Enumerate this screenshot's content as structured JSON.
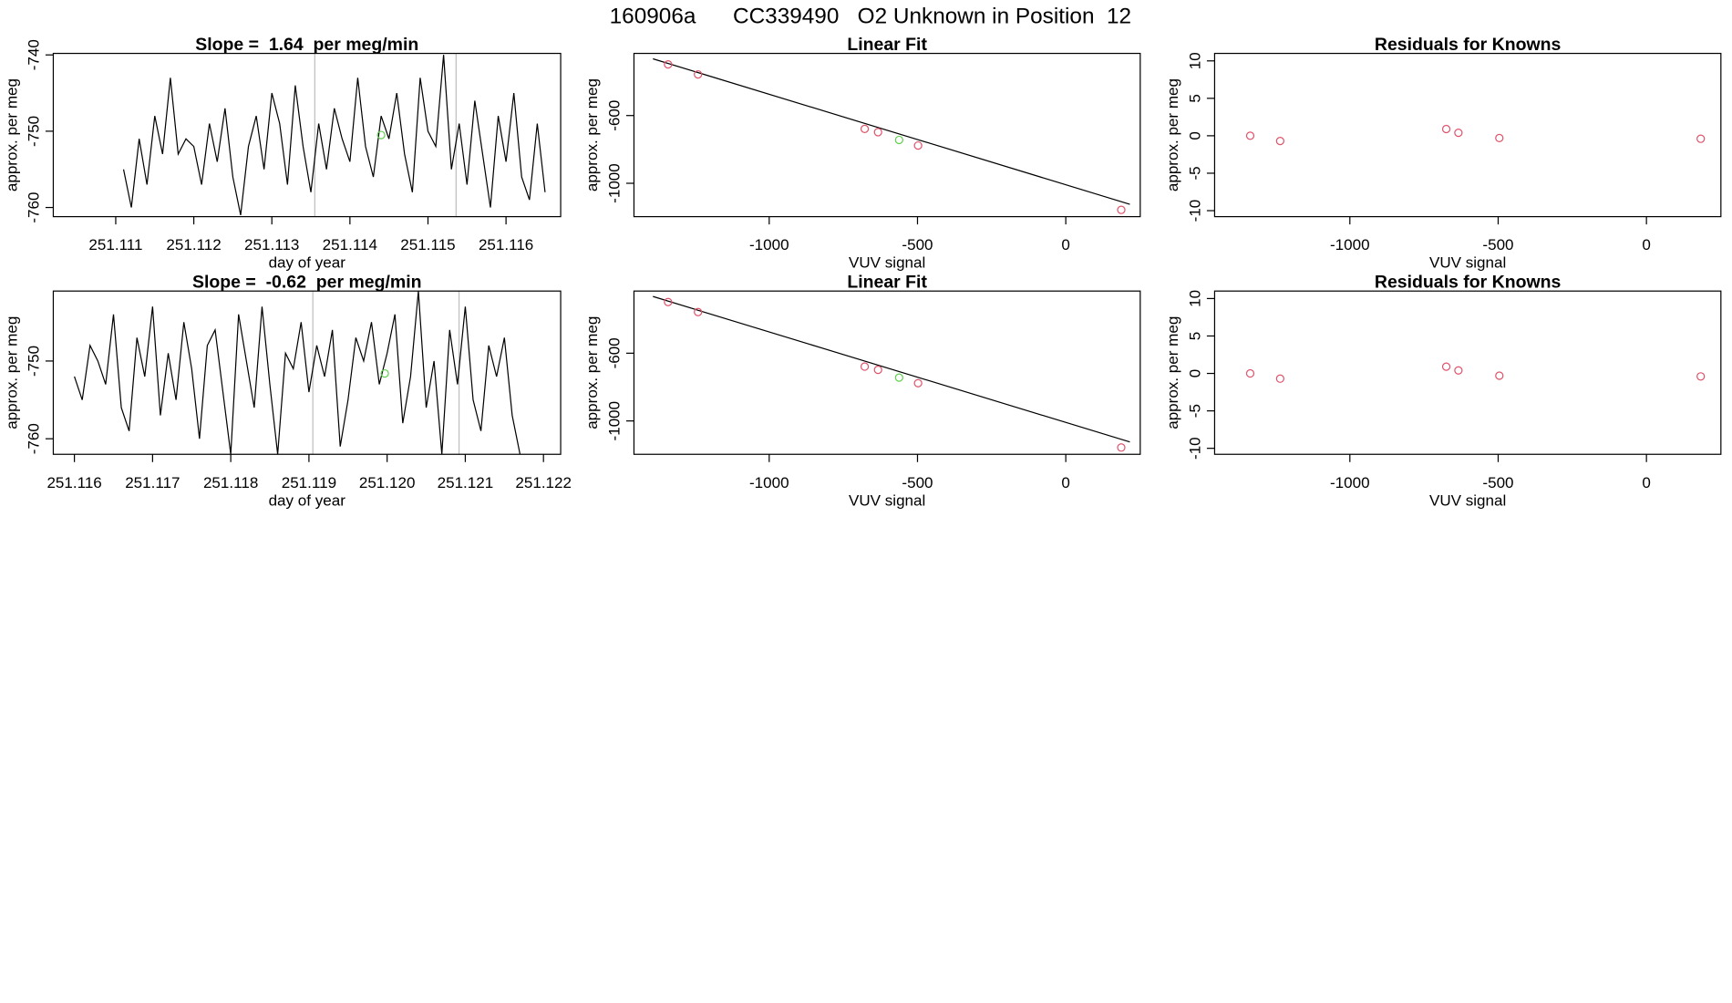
{
  "title": "160906a      CC339490   O2 Unknown in Position  12",
  "chart_data": [
    {
      "type": "line",
      "title": "Slope =  1.64  per meg/min",
      "xlabel": "day of year",
      "ylabel": "approx. per meg",
      "xlim": [
        251.1102,
        251.1167
      ],
      "ylim": [
        -761.2,
        -739.8
      ],
      "xticks": [
        251.111,
        251.112,
        251.113,
        251.114,
        251.115,
        251.116
      ],
      "yticks": [
        -740,
        -750,
        -760
      ],
      "color": "#000000",
      "vlines": [
        251.11355,
        251.11536
      ],
      "vline_color": "#bebebe",
      "x": [
        251.1111,
        251.1112,
        251.1113,
        251.1114,
        251.1115,
        251.1116,
        251.1117,
        251.1118,
        251.1119,
        251.112,
        251.1121,
        251.1122,
        251.1123,
        251.1124,
        251.1125,
        251.1126,
        251.1127,
        251.1128,
        251.1129,
        251.113,
        251.1131,
        251.1132,
        251.1133,
        251.1134,
        251.1135,
        251.1136,
        251.1137,
        251.1138,
        251.1139,
        251.114,
        251.1141,
        251.1142,
        251.1143,
        251.1144,
        251.1145,
        251.1146,
        251.1147,
        251.1148,
        251.1149,
        251.115,
        251.1151,
        251.1152,
        251.1153,
        251.1154,
        251.1155,
        251.1156,
        251.1157,
        251.1158,
        251.1159,
        251.116,
        251.1161,
        251.1162,
        251.1163,
        251.1164,
        251.1165
      ],
      "values": [
        -755,
        -760,
        -751,
        -757,
        -748,
        -753,
        -743,
        -753,
        -751,
        -752,
        -757,
        -749,
        -754,
        -747,
        -756,
        -761,
        -752,
        -748,
        -755,
        -745,
        -749,
        -757,
        -744,
        -752,
        -758,
        -749,
        -755,
        -747,
        -751,
        -754,
        -743,
        -752,
        -756,
        -748,
        -751,
        -745,
        -753,
        -758,
        -743,
        -750,
        -752,
        -740,
        -755,
        -749,
        -757,
        -746,
        -753,
        -760,
        -748,
        -754,
        -745,
        -756,
        -759,
        -749,
        -758
      ],
      "highlight": {
        "x": 251.1144,
        "y": -750.5,
        "color": "#61d04f"
      }
    },
    {
      "type": "scatter",
      "title": "Linear Fit",
      "xlabel": "VUV signal",
      "ylabel": "approx. per meg",
      "xlim": [
        -1456,
        251
      ],
      "ylim": [
        -1197,
        -233
      ],
      "xticks": [
        -1000,
        -500,
        0
      ],
      "yticks": [
        -600,
        -1000
      ],
      "color": "#df536b",
      "x": [
        -1341,
        -1240,
        -678,
        -633,
        -498,
        187
      ],
      "values": [
        -298,
        -357,
        -679,
        -698,
        -777,
        -1157
      ],
      "fit": {
        "x": [
          -1392,
          216
        ],
        "values": [
          -265,
          -1124
        ],
        "color": "#000000"
      },
      "highlight": {
        "x": -562,
        "y": -744,
        "color": "#61d04f"
      }
    },
    {
      "type": "scatter",
      "title": "Residuals for Knowns",
      "xlabel": "VUV signal",
      "ylabel": "approx. per meg",
      "xlim": [
        -1456,
        251
      ],
      "ylim": [
        -10.8,
        11
      ],
      "xticks": [
        -1000,
        -500,
        0
      ],
      "yticks": [
        10,
        5,
        0,
        -5,
        -10
      ],
      "color": "#df536b",
      "x": [
        -1336,
        -1235,
        -675,
        -634,
        -496,
        183
      ],
      "values": [
        0.0,
        -0.7,
        0.9,
        0.4,
        -0.3,
        -0.4
      ]
    },
    {
      "type": "line",
      "title": "Slope =  -0.62  per meg/min",
      "xlabel": "day of year",
      "ylabel": "approx. per meg",
      "xlim": [
        251.11573,
        251.12222
      ],
      "ylim": [
        -762,
        -741
      ],
      "xticks": [
        251.116,
        251.117,
        251.118,
        251.119,
        {
          "value": 251.12,
          "label": "251.120"
        },
        251.121,
        251.122
      ],
      "yticks": [
        -750,
        -760
      ],
      "color": "#000000",
      "vlines": [
        251.11905,
        251.12092
      ],
      "vline_color": "#bebebe",
      "x": [
        251.116,
        251.1161,
        251.1162,
        251.1163,
        251.1164,
        251.1165,
        251.1166,
        251.1167,
        251.1168,
        251.1169,
        251.117,
        251.1171,
        251.1172,
        251.1173,
        251.1174,
        251.1175,
        251.1176,
        251.1177,
        251.1178,
        251.1179,
        251.118,
        251.1181,
        251.1182,
        251.1183,
        251.1184,
        251.1185,
        251.1186,
        251.1187,
        251.1188,
        251.1189,
        251.119,
        251.1191,
        251.1192,
        251.1193,
        251.1194,
        251.1195,
        251.1196,
        251.1197,
        251.1198,
        251.1199,
        251.12,
        251.1201,
        251.1202,
        251.1203,
        251.1204,
        251.1205,
        251.1206,
        251.1207,
        251.1208,
        251.1209,
        251.121,
        251.1211,
        251.1212,
        251.1213,
        251.1214,
        251.1215,
        251.1216,
        251.1217
      ],
      "values": [
        -752,
        -755,
        -748,
        -750,
        -753,
        -744,
        -756,
        -759,
        -747,
        -752,
        -743,
        -757,
        -749,
        -755,
        -745,
        -751,
        -760,
        -748,
        -746,
        -754,
        -762,
        -744,
        -750,
        -756,
        -743,
        -753,
        -762,
        -749,
        -751,
        -745,
        -754,
        -748,
        -752,
        -746,
        -761,
        -755,
        -747,
        -750,
        -745,
        -753,
        -749,
        -744,
        -758,
        -752,
        -741,
        -756,
        -750,
        -762,
        -746,
        -753,
        -743,
        -755,
        -759,
        -748,
        -752,
        -747,
        -757,
        -762
      ],
      "highlight": {
        "x": 251.11997,
        "y": -751.6,
        "color": "#61d04f"
      }
    },
    {
      "type": "scatter",
      "title": "Linear Fit",
      "xlabel": "VUV signal",
      "ylabel": "approx. per meg",
      "xlim": [
        -1456,
        251
      ],
      "ylim": [
        -1197,
        -233
      ],
      "xticks": [
        -1000,
        -500,
        0
      ],
      "yticks": [
        -600,
        -1000
      ],
      "color": "#df536b",
      "x": [
        -1341,
        -1240,
        -678,
        -633,
        -498,
        187
      ],
      "values": [
        -298,
        -357,
        -679,
        -698,
        -777,
        -1157
      ],
      "fit": {
        "x": [
          -1392,
          216
        ],
        "values": [
          -265,
          -1124
        ],
        "color": "#000000"
      },
      "highlight": {
        "x": -562,
        "y": -744,
        "color": "#61d04f"
      }
    },
    {
      "type": "scatter",
      "title": "Residuals for Knowns",
      "xlabel": "VUV signal",
      "ylabel": "approx. per meg",
      "xlim": [
        -1456,
        251
      ],
      "ylim": [
        -10.8,
        11
      ],
      "xticks": [
        -1000,
        -500,
        0
      ],
      "yticks": [
        10,
        5,
        0,
        -5,
        -10
      ],
      "color": "#df536b",
      "x": [
        -1336,
        -1235,
        -675,
        -634,
        -496,
        183
      ],
      "values": [
        0.0,
        -0.7,
        0.9,
        0.4,
        -0.3,
        -0.4
      ]
    }
  ]
}
